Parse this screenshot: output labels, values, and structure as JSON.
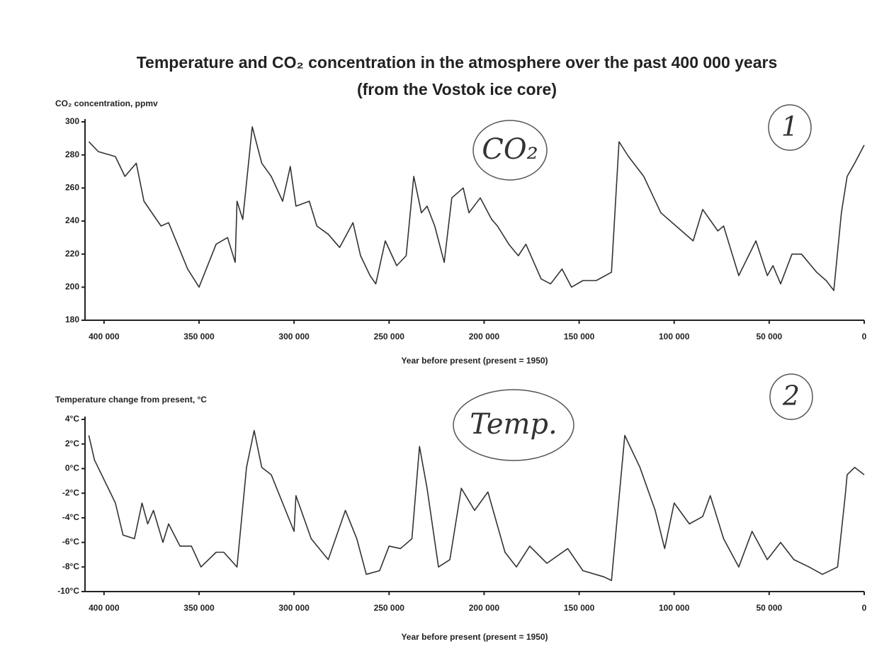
{
  "chart_data": [
    {
      "type": "line",
      "title": "Temperature and CO₂ concentration in the atmosphere over the past 400 000 years",
      "subtitle": "(from the Vostok ice core)",
      "y_label": "CO₂ concentration, ppmv",
      "x_label": "Year before present (present = 1950)",
      "annotations": [
        "CO₂",
        "1"
      ],
      "xlim": [
        410000,
        0
      ],
      "ylim": [
        180,
        300
      ],
      "xticks": [
        {
          "value": 400000,
          "label": "400 000"
        },
        {
          "value": 350000,
          "label": "350 000"
        },
        {
          "value": 300000,
          "label": "300 000"
        },
        {
          "value": 250000,
          "label": "250 000"
        },
        {
          "value": 200000,
          "label": "200 000"
        },
        {
          "value": 150000,
          "label": "150 000"
        },
        {
          "value": 100000,
          "label": "100 000"
        },
        {
          "value": 50000,
          "label": "50 000"
        },
        0
      ],
      "yticks": [
        180,
        200,
        220,
        240,
        260,
        280,
        300
      ],
      "color": "#333333",
      "x": [
        408000,
        403000,
        394000,
        389000,
        383000,
        379000,
        370000,
        366000,
        356000,
        350000,
        341000,
        335000,
        331000,
        330000,
        327000,
        322000,
        317000,
        312000,
        306000,
        302000,
        299000,
        292000,
        288000,
        282000,
        276000,
        269000,
        265000,
        260000,
        257000,
        252000,
        246000,
        241000,
        237000,
        233000,
        230000,
        226000,
        221000,
        217000,
        211000,
        208000,
        202000,
        196000,
        193000,
        187000,
        182000,
        178000,
        170000,
        165000,
        159000,
        154000,
        148000,
        141000,
        133000,
        129000,
        124000,
        116000,
        107000,
        96000,
        90000,
        85000,
        77000,
        74000,
        66000,
        57000,
        51000,
        48000,
        44000,
        38000,
        33000,
        25000,
        20000,
        16000,
        12000,
        9000,
        5000,
        0
      ],
      "values": [
        288,
        282,
        279,
        267,
        275,
        252,
        237,
        239,
        211,
        200,
        226,
        230,
        215,
        252,
        241,
        297,
        275,
        267,
        252,
        273,
        249,
        252,
        237,
        232,
        224,
        239,
        219,
        207,
        202,
        228,
        213,
        219,
        267,
        245,
        249,
        237,
        215,
        254,
        260,
        245,
        254,
        241,
        237,
        226,
        219,
        226,
        205,
        202,
        211,
        200,
        204,
        204,
        209,
        288,
        279,
        267,
        245,
        234,
        228,
        247,
        234,
        237,
        207,
        228,
        207,
        213,
        202,
        220,
        220,
        209,
        204,
        198,
        245,
        267,
        275,
        286
      ]
    },
    {
      "type": "line",
      "y_label": "Temperature change from present, °C",
      "x_label": "Year before present (present = 1950)",
      "annotations": [
        "Temp.",
        "2"
      ],
      "xlim": [
        410000,
        0
      ],
      "ylim": [
        -10,
        4
      ],
      "xticks": [
        {
          "value": 400000,
          "label": "400 000"
        },
        {
          "value": 350000,
          "label": "350 000"
        },
        {
          "value": 300000,
          "label": "300 000"
        },
        {
          "value": 250000,
          "label": "250 000"
        },
        {
          "value": 200000,
          "label": "200 000"
        },
        {
          "value": 150000,
          "label": "150 000"
        },
        {
          "value": 100000,
          "label": "100 000"
        },
        {
          "value": 50000,
          "label": "50 000"
        },
        0
      ],
      "yticks": [
        {
          "value": -10,
          "label": "-10°C"
        },
        {
          "value": -8,
          "label": "-8°C"
        },
        {
          "value": -6,
          "label": "-6°C"
        },
        {
          "value": -4,
          "label": "-4°C"
        },
        {
          "value": -2,
          "label": "-2°C"
        },
        {
          "value": 0,
          "label": "0°C"
        },
        {
          "value": 2,
          "label": "2°C"
        },
        {
          "value": 4,
          "label": "4°C"
        }
      ],
      "color": "#333333",
      "x": [
        408000,
        405000,
        394000,
        390000,
        384000,
        380000,
        377000,
        374000,
        369000,
        366000,
        360000,
        354000,
        349000,
        341000,
        337000,
        330000,
        325000,
        321000,
        317000,
        312000,
        300000,
        299000,
        291000,
        282000,
        273000,
        267000,
        262000,
        255000,
        250000,
        244000,
        238000,
        234000,
        230000,
        224000,
        218000,
        212000,
        205000,
        198000,
        189000,
        183000,
        176000,
        167000,
        156000,
        148000,
        137000,
        133000,
        126000,
        118000,
        110000,
        105000,
        100000,
        92000,
        85000,
        81000,
        74000,
        66000,
        59000,
        51000,
        44000,
        37000,
        29000,
        22000,
        14000,
        10000,
        9000,
        5000,
        0
      ],
      "values": [
        2.7,
        0.7,
        -2.8,
        -5.4,
        -5.7,
        -2.8,
        -4.5,
        -3.4,
        -6,
        -4.5,
        -6.3,
        -6.3,
        -8,
        -6.8,
        -6.8,
        -8,
        0.1,
        3.1,
        0.1,
        -0.5,
        -5.1,
        -2.2,
        -5.7,
        -7.4,
        -3.4,
        -5.7,
        -8.6,
        -8.3,
        -6.3,
        -6.5,
        -5.7,
        1.8,
        -1.6,
        -8,
        -7.4,
        -1.6,
        -3.4,
        -1.9,
        -6.8,
        -8,
        -6.3,
        -7.7,
        -6.5,
        -8.3,
        -8.8,
        -9.1,
        2.7,
        0.1,
        -3.4,
        -6.5,
        -2.8,
        -4.5,
        -3.9,
        -2.2,
        -5.7,
        -8,
        -5.1,
        -7.4,
        -6,
        -7.4,
        -8,
        -8.6,
        -8,
        -2.2,
        -0.5,
        0.1,
        -0.5
      ]
    }
  ]
}
